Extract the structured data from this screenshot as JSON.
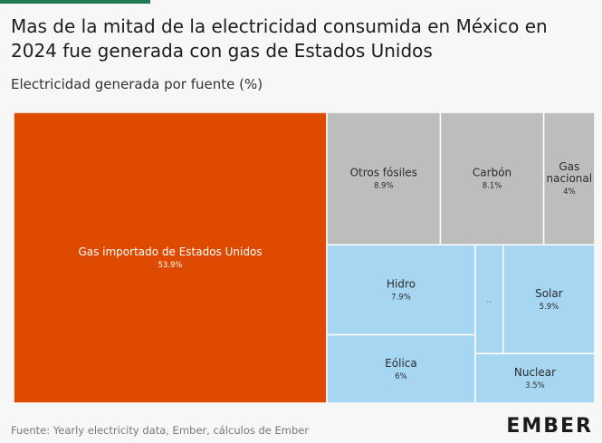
{
  "header": {
    "title": "Mas de la mitad de la electricidad consumida en México en 2024 fue generada con gas de Estados Unidos",
    "subtitle": "Electricidad generada por fuente (%)"
  },
  "footer": {
    "source": "Fuente: Yearly electricity data, Ember, cálculos de Ember",
    "brand": "EMBER"
  },
  "colors": {
    "imported_gas": "#de4a00",
    "fossil": "#bdbdbd",
    "clean": "#a6d6f2",
    "label_on_dark": "#ffffff",
    "label_on_light": "#2b2b2b"
  },
  "chart_data": {
    "type": "treemap",
    "title": "Mas de la mitad de la electricidad consumida en México en 2024 fue generada con gas de Estados Unidos",
    "subtitle": "Electricidad generada por fuente (%)",
    "unit": "%",
    "items": [
      {
        "name": "Gas importado de Estados Unidos",
        "value": 53.9,
        "label": "53.9%",
        "group": "imported_gas"
      },
      {
        "name": "Otros fósiles",
        "value": 8.9,
        "label": "8.9%",
        "group": "fossil"
      },
      {
        "name": "Carbón",
        "value": 8.1,
        "label": "8.1%",
        "group": "fossil"
      },
      {
        "name": "Gas nacional",
        "value": 4,
        "label": "4%",
        "group": "fossil"
      },
      {
        "name": "Hidro",
        "value": 7.9,
        "label": "7.9%",
        "group": "clean"
      },
      {
        "name": "Eólica",
        "value": 6,
        "label": "6%",
        "group": "clean"
      },
      {
        "name": "Solar",
        "value": 5.9,
        "label": "5.9%",
        "group": "clean"
      },
      {
        "name": "Nuclear",
        "value": 3.5,
        "label": "3.5%",
        "group": "clean"
      },
      {
        "name": "",
        "value": 1.8,
        "label": "...",
        "group": "clean"
      }
    ]
  }
}
